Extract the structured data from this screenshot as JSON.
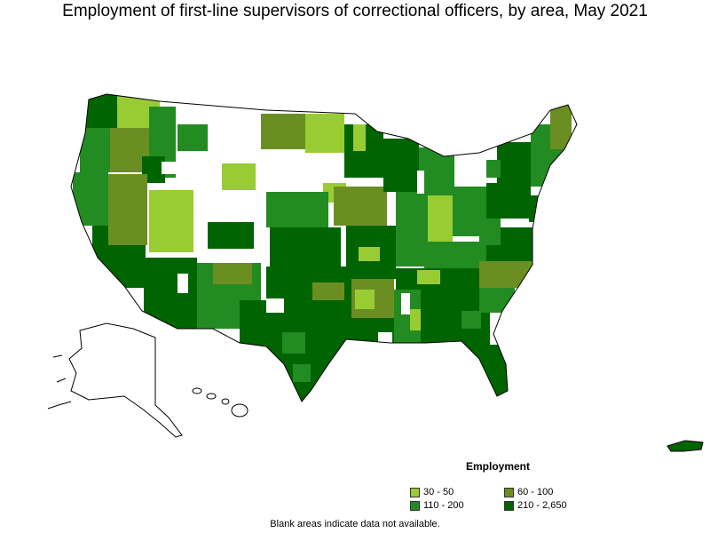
{
  "title": "Employment of first-line supervisors of correctional officers, by area, May 2021",
  "legend": {
    "title": "Employment",
    "items": [
      {
        "label": "30 - 50",
        "color": "#99cc33"
      },
      {
        "label": "60 - 100",
        "color": "#6b8e23"
      },
      {
        "label": "110 - 200",
        "color": "#228b22"
      },
      {
        "label": "210 - 2,650",
        "color": "#006400"
      }
    ]
  },
  "footnote": "Blank areas indicate data not available."
}
